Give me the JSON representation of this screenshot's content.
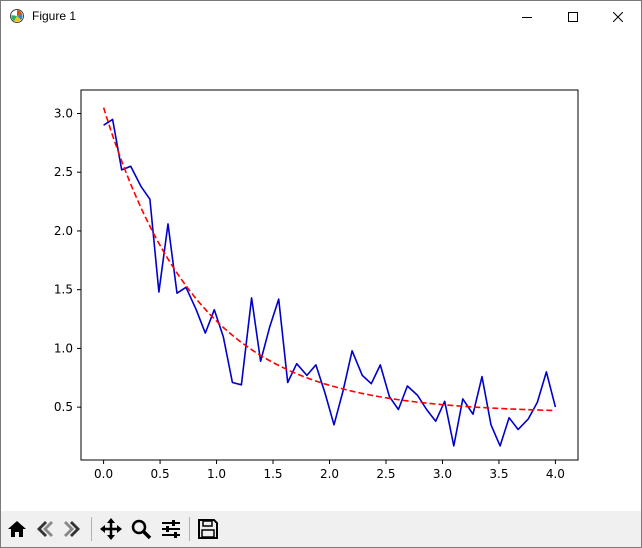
{
  "window": {
    "title": "Figure 1"
  },
  "toolbar": {
    "buttons": [
      "home-icon",
      "back-icon",
      "forward-icon",
      "pan-icon",
      "zoom-icon",
      "configure-subplots-icon",
      "save-icon"
    ]
  },
  "colors": {
    "data_line": "#0000cc",
    "fit_line": "#ff0000",
    "axes": "#000000",
    "toolbar_bg": "#f0f0f0"
  },
  "chart_data": {
    "type": "line",
    "title": "",
    "xlabel": "",
    "ylabel": "",
    "xlim": [
      -0.2,
      4.2
    ],
    "ylim": [
      0.05,
      3.2
    ],
    "xticks": [
      "0.0",
      "0.5",
      "1.0",
      "1.5",
      "2.0",
      "2.5",
      "3.0",
      "3.5",
      "4.0"
    ],
    "yticks": [
      "0.5",
      "1.0",
      "1.5",
      "2.0",
      "2.5",
      "3.0"
    ],
    "grid": false,
    "series": [
      {
        "style": "solid",
        "color": "#0000cc",
        "x": [
          0.0,
          0.08,
          0.16,
          0.24,
          0.33,
          0.41,
          0.49,
          0.57,
          0.65,
          0.73,
          0.82,
          0.9,
          0.98,
          1.06,
          1.14,
          1.22,
          1.31,
          1.39,
          1.47,
          1.55,
          1.63,
          1.71,
          1.8,
          1.88,
          1.96,
          2.04,
          2.12,
          2.2,
          2.29,
          2.37,
          2.45,
          2.53,
          2.61,
          2.69,
          2.78,
          2.86,
          2.94,
          3.02,
          3.1,
          3.18,
          3.27,
          3.35,
          3.43,
          3.51,
          3.59,
          3.67,
          3.76,
          3.84,
          3.92,
          4.0
        ],
        "y": [
          2.9,
          2.95,
          2.52,
          2.55,
          2.38,
          2.27,
          1.48,
          2.06,
          1.47,
          1.52,
          1.33,
          1.13,
          1.33,
          1.1,
          0.71,
          0.69,
          1.43,
          0.89,
          1.18,
          1.42,
          0.71,
          0.87,
          0.77,
          0.86,
          0.62,
          0.35,
          0.64,
          0.98,
          0.77,
          0.7,
          0.86,
          0.59,
          0.48,
          0.68,
          0.6,
          0.48,
          0.38,
          0.55,
          0.17,
          0.57,
          0.44,
          0.76,
          0.35,
          0.17,
          0.41,
          0.31,
          0.4,
          0.54,
          0.8,
          0.5
        ]
      },
      {
        "style": "dashed",
        "color": "#ff0000",
        "model": "a*exp(-b*x)+c",
        "params": {
          "a": 2.6,
          "b": 1.2,
          "c": 0.45
        }
      }
    ]
  }
}
